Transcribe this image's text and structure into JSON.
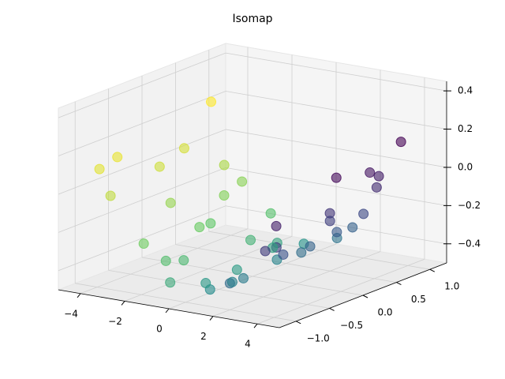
{
  "chart_data": {
    "type": "scatter3d",
    "title": "Isomap",
    "colormap": "viridis",
    "grid": true,
    "x": [
      -4.6,
      -4.3,
      -4.0,
      -3.7,
      -3.4,
      -3.1,
      -2.8,
      -2.5,
      -2.2,
      -1.9,
      -1.6,
      -1.3,
      -1.0,
      -0.7,
      -0.4,
      -0.1,
      0.2,
      0.5,
      0.8,
      1.1,
      1.4,
      1.7,
      2.0,
      2.3,
      2.6,
      2.9,
      3.2,
      3.5,
      3.8,
      4.1,
      4.4,
      -3.9,
      -2.9,
      -1.8,
      -0.6,
      0.6,
      1.8,
      2.9,
      3.9,
      -4.2,
      -2.4,
      -0.3,
      1.3,
      3.0,
      4.6
    ],
    "y": [
      0.9,
      -0.6,
      0.3,
      -0.9,
      0.7,
      -0.2,
      0.5,
      -0.8,
      0.1,
      0.9,
      -0.5,
      0.4,
      -0.9,
      0.6,
      -0.1,
      0.8,
      -0.7,
      0.2,
      -0.4,
      0.9,
      -0.8,
      0.3,
      0.6,
      -0.3,
      0.8,
      -0.6,
      0.1,
      0.7,
      -0.9,
      0.4,
      -0.2,
      -0.1,
      0.8,
      -0.7,
      0.5,
      -0.5,
      0.9,
      0.2,
      0.6,
      -0.9,
      0.0,
      -0.6,
      0.3,
      -0.8,
      0.7
    ],
    "z": [
      0.2,
      0.12,
      0.05,
      -0.03,
      -0.08,
      -0.15,
      -0.2,
      -0.27,
      -0.28,
      -0.33,
      -0.38,
      -0.39,
      -0.43,
      -0.42,
      -0.46,
      -0.44,
      -0.47,
      -0.43,
      -0.44,
      -0.4,
      -0.4,
      -0.35,
      -0.31,
      -0.3,
      -0.23,
      -0.21,
      -0.12,
      -0.06,
      -0.04,
      0.07,
      0.13,
      0.01,
      -0.17,
      -0.36,
      -0.43,
      -0.45,
      -0.33,
      -0.18,
      0.02,
      0.1,
      -0.29,
      -0.46,
      -0.39,
      -0.2,
      0.2
    ],
    "c": [
      4.6,
      4.3,
      4.0,
      3.7,
      3.4,
      3.1,
      2.8,
      2.5,
      2.2,
      1.9,
      1.6,
      1.3,
      1.0,
      0.7,
      0.4,
      0.1,
      -0.2,
      -0.5,
      -0.8,
      -1.1,
      -1.4,
      -1.7,
      -2.0,
      -2.3,
      -2.6,
      -2.9,
      -3.2,
      -3.5,
      -3.8,
      -4.1,
      -4.4,
      3.9,
      2.9,
      1.8,
      0.6,
      -0.6,
      -1.8,
      -2.9,
      -3.9,
      4.2,
      2.4,
      0.3,
      -1.3,
      -3.0,
      -4.6
    ],
    "xlim": [
      -5,
      5
    ],
    "ylim": [
      -1.25,
      1.25
    ],
    "zlim": [
      -0.5,
      0.45
    ],
    "xticks": [
      {
        "value": -4,
        "label": "−4"
      },
      {
        "value": -2,
        "label": "−2"
      },
      0,
      2,
      4
    ],
    "yticks": [
      {
        "value": -1,
        "label": "−1.0"
      },
      {
        "value": -0.5,
        "label": "−0.5"
      },
      {
        "value": 0,
        "label": "0.0"
      },
      {
        "value": 0.5,
        "label": "0.5"
      },
      {
        "value": 1,
        "label": "1.0"
      }
    ],
    "zticks": [
      {
        "value": -0.4,
        "label": "−0.4"
      },
      {
        "value": -0.2,
        "label": "−0.2"
      },
      {
        "value": 0,
        "label": "0.0"
      },
      {
        "value": 0.2,
        "label": "0.2"
      },
      {
        "value": 0.4,
        "label": "0.4"
      }
    ]
  }
}
